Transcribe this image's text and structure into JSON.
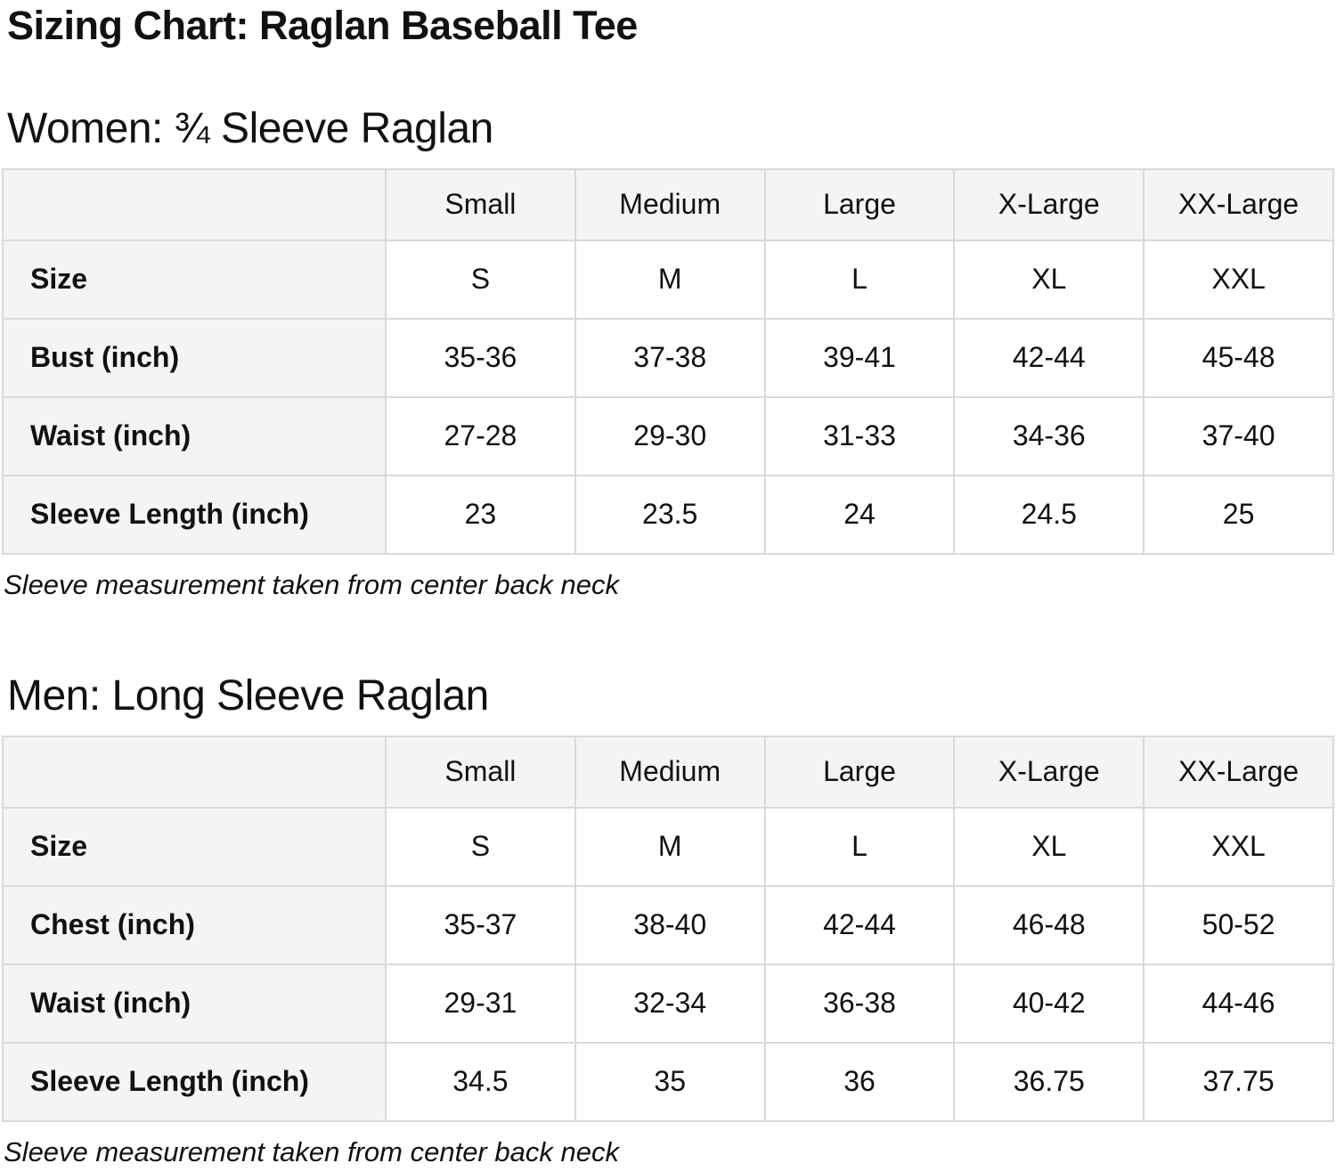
{
  "page": {
    "title": "Sizing Chart: Raglan Baseball Tee"
  },
  "colors": {
    "text": "#111111",
    "table_border": "#d9d9d9",
    "header_cell_bg": "#f4f4f4",
    "value_cell_bg": "#ffffff"
  },
  "sections": [
    {
      "heading": "Women: ¾ Sleeve Raglan",
      "note": "Sleeve measurement taken from center back neck",
      "table": {
        "columns": [
          "",
          "Small",
          "Medium",
          "Large",
          "X-Large",
          "XX-Large"
        ],
        "rows": [
          {
            "label": "Size",
            "values": [
              "S",
              "M",
              "L",
              "XL",
              "XXL"
            ]
          },
          {
            "label": "Bust (inch)",
            "values": [
              "35-36",
              "37-38",
              "39-41",
              "42-44",
              "45-48"
            ]
          },
          {
            "label": "Waist (inch)",
            "values": [
              "27-28",
              "29-30",
              "31-33",
              "34-36",
              "37-40"
            ]
          },
          {
            "label": "Sleeve Length (inch)",
            "values": [
              "23",
              "23.5",
              "24",
              "24.5",
              "25"
            ]
          }
        ]
      }
    },
    {
      "heading": "Men: Long Sleeve Raglan",
      "note": "Sleeve measurement taken from center back neck",
      "table": {
        "columns": [
          "",
          "Small",
          "Medium",
          "Large",
          "X-Large",
          "XX-Large"
        ],
        "rows": [
          {
            "label": "Size",
            "values": [
              "S",
              "M",
              "L",
              "XL",
              "XXL"
            ]
          },
          {
            "label": "Chest (inch)",
            "values": [
              "35-37",
              "38-40",
              "42-44",
              "46-48",
              "50-52"
            ]
          },
          {
            "label": "Waist (inch)",
            "values": [
              "29-31",
              "32-34",
              "36-38",
              "40-42",
              "44-46"
            ]
          },
          {
            "label": "Sleeve Length (inch)",
            "values": [
              "34.5",
              "35",
              "36",
              "36.75",
              "37.75"
            ]
          }
        ]
      }
    }
  ]
}
